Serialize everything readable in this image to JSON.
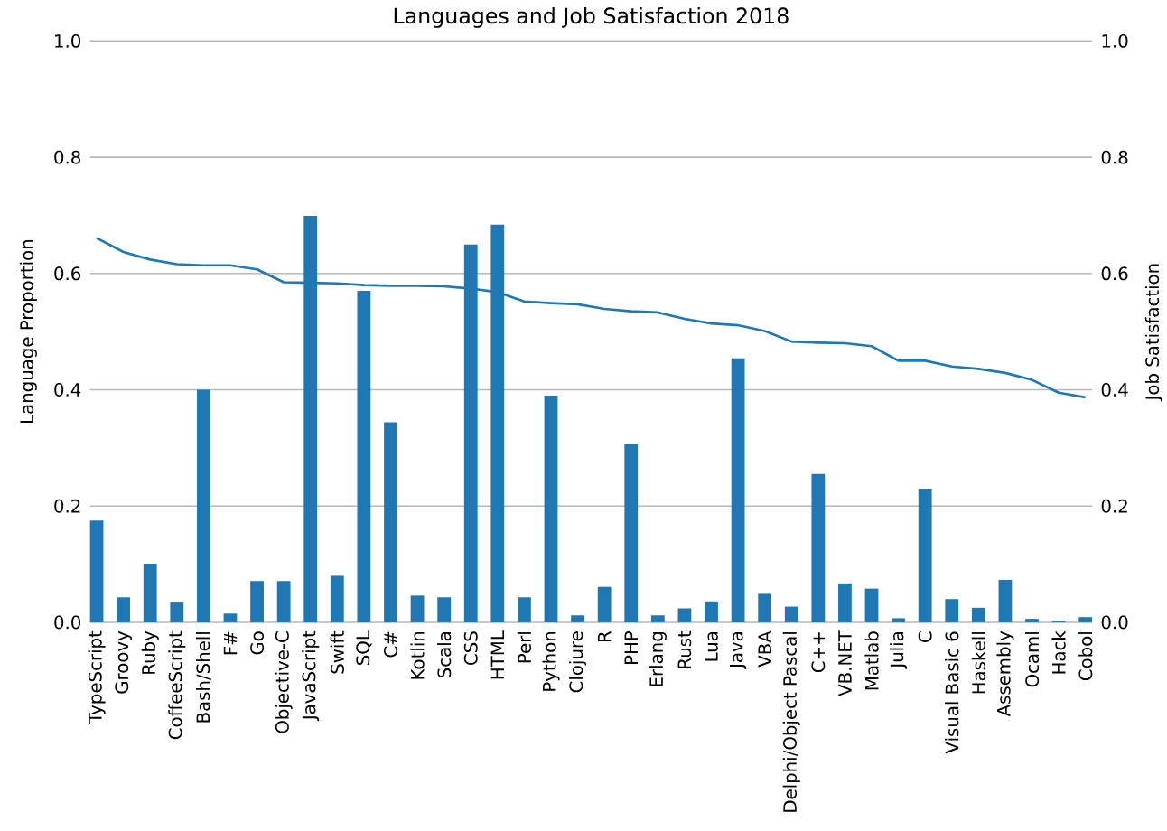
{
  "chart_data": {
    "type": "bar",
    "title": "Languages and Job Satisfaction 2018",
    "ylabel": "Language Proportion",
    "y2label": "Job Satisfaction",
    "categories": [
      "TypeScript",
      "Groovy",
      "Ruby",
      "CoffeeScript",
      "Bash/Shell",
      "F#",
      "Go",
      "Objective-C",
      "JavaScript",
      "Swift",
      "SQL",
      "C#",
      "Kotlin",
      "Scala",
      "CSS",
      "HTML",
      "Perl",
      "Python",
      "Clojure",
      "R",
      "PHP",
      "Erlang",
      "Rust",
      "Lua",
      "Java",
      "VBA",
      "Delphi/Object Pascal",
      "C++",
      "VB.NET",
      "Matlab",
      "Julia",
      "C",
      "Visual Basic 6",
      "Haskell",
      "Assembly",
      "Ocaml",
      "Hack",
      "Cobol"
    ],
    "series": [
      {
        "color": "#1f77b4",
        "values": [
          0.175,
          0.043,
          0.101,
          0.034,
          0.4,
          0.015,
          0.071,
          0.071,
          0.699,
          0.08,
          0.57,
          0.344,
          0.046,
          0.043,
          0.65,
          0.684,
          0.043,
          0.39,
          0.012,
          0.061,
          0.307,
          0.012,
          0.024,
          0.036,
          0.454,
          0.049,
          0.027,
          0.255,
          0.067,
          0.058,
          0.007,
          0.23,
          0.04,
          0.025,
          0.073,
          0.006,
          0.003,
          0.009
        ]
      },
      {
        "type": "line",
        "axis": "y2",
        "color": "#1f77b4",
        "values": [
          0.661,
          0.637,
          0.624,
          0.616,
          0.614,
          0.614,
          0.607,
          0.585,
          0.584,
          0.583,
          0.58,
          0.579,
          0.579,
          0.578,
          0.574,
          0.568,
          0.552,
          0.549,
          0.547,
          0.539,
          0.535,
          0.533,
          0.522,
          0.514,
          0.511,
          0.501,
          0.483,
          0.481,
          0.48,
          0.475,
          0.45,
          0.45,
          0.44,
          0.436,
          0.429,
          0.417,
          0.395,
          0.387
        ]
      }
    ],
    "ylim": [
      0,
      1
    ],
    "yticks": [
      {
        "value": 0,
        "label": "0.0"
      },
      {
        "value": 0.2,
        "label": "0.2"
      },
      {
        "value": 0.4,
        "label": "0.4"
      },
      {
        "value": 0.6,
        "label": "0.6"
      },
      {
        "value": 0.8,
        "label": "0.8"
      },
      {
        "value": 1,
        "label": "1.0"
      }
    ],
    "y2lim": [
      0,
      1
    ],
    "y2ticks": [
      {
        "value": 0,
        "label": "0.0"
      },
      {
        "value": 0.2,
        "label": "0.2"
      },
      {
        "value": 0.4,
        "label": "0.4"
      },
      {
        "value": 0.6,
        "label": "0.6"
      },
      {
        "value": 0.8,
        "label": "0.8"
      },
      {
        "value": 1,
        "label": "1.0"
      }
    ],
    "grid": "y"
  }
}
